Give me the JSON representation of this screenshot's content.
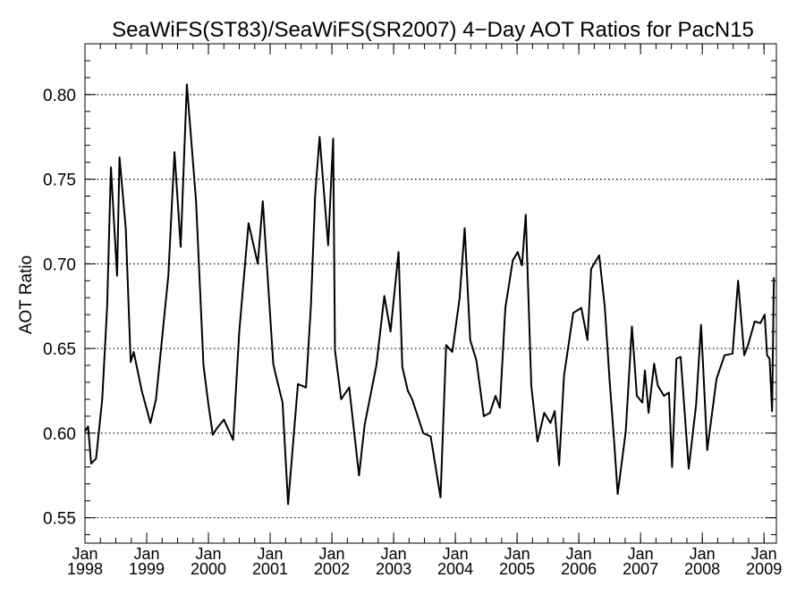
{
  "chart_data": {
    "type": "line",
    "title": "SeaWiFS(ST83)/SeaWiFS(SR2007) 4−Day AOT Ratios for PacN15",
    "ylabel": "AOT Ratio",
    "xlabel": "",
    "ylim": [
      0.535,
      0.83
    ],
    "xlim": [
      1998.0,
      2009.2
    ],
    "grid": "horizontal-dotted",
    "y_ticks": [
      {
        "value": 0.55,
        "label": "0.55"
      },
      {
        "value": 0.6,
        "label": "0.60"
      },
      {
        "value": 0.65,
        "label": "0.65"
      },
      {
        "value": 0.7,
        "label": "0.70"
      },
      {
        "value": 0.75,
        "label": "0.75"
      },
      {
        "value": 0.8,
        "label": "0.80"
      }
    ],
    "x_ticks": [
      {
        "value": 1998,
        "month": "Jan",
        "year": "1998"
      },
      {
        "value": 1999,
        "month": "Jan",
        "year": "1999"
      },
      {
        "value": 2000,
        "month": "Jan",
        "year": "2000"
      },
      {
        "value": 2001,
        "month": "Jan",
        "year": "2001"
      },
      {
        "value": 2002,
        "month": "Jan",
        "year": "2002"
      },
      {
        "value": 2003,
        "month": "Jan",
        "year": "2003"
      },
      {
        "value": 2004,
        "month": "Jan",
        "year": "2004"
      },
      {
        "value": 2005,
        "month": "Jan",
        "year": "2005"
      },
      {
        "value": 2006,
        "month": "Jan",
        "year": "2006"
      },
      {
        "value": 2007,
        "month": "Jan",
        "year": "2007"
      },
      {
        "value": 2008,
        "month": "Jan",
        "year": "2008"
      },
      {
        "value": 2009,
        "month": "Jan",
        "year": "2009"
      }
    ],
    "series": [
      {
        "color": "#000000",
        "x": [
          1998.0,
          1998.05,
          1998.1,
          1998.18,
          1998.28,
          1998.36,
          1998.42,
          1998.52,
          1998.56,
          1998.66,
          1998.74,
          1998.79,
          1998.92,
          1999.06,
          1999.15,
          1999.35,
          1999.45,
          1999.55,
          1999.65,
          1999.8,
          1999.92,
          2000.0,
          2000.07,
          2000.14,
          2000.25,
          2000.4,
          2000.5,
          2000.65,
          2000.8,
          2000.88,
          2001.05,
          2001.08,
          2001.2,
          2001.29,
          2001.45,
          2001.58,
          2001.66,
          2001.73,
          2001.8,
          2001.94,
          2002.02,
          2002.05,
          2002.15,
          2002.28,
          2002.44,
          2002.53,
          2002.72,
          2002.85,
          2002.95,
          2003.08,
          2003.14,
          2003.23,
          2003.3,
          2003.48,
          2003.6,
          2003.76,
          2003.85,
          2003.95,
          2004.07,
          2004.15,
          2004.24,
          2004.34,
          2004.46,
          2004.56,
          2004.65,
          2004.72,
          2004.81,
          2004.93,
          2005.01,
          2005.08,
          2005.14,
          2005.23,
          2005.33,
          2005.44,
          2005.54,
          2005.61,
          2005.68,
          2005.76,
          2005.91,
          2006.04,
          2006.14,
          2006.2,
          2006.33,
          2006.42,
          2006.5,
          2006.57,
          2006.63,
          2006.76,
          2006.86,
          2006.94,
          2007.03,
          2007.07,
          2007.13,
          2007.22,
          2007.28,
          2007.38,
          2007.46,
          2007.51,
          2007.58,
          2007.65,
          2007.78,
          2007.9,
          2007.98,
          2008.08,
          2008.23,
          2008.36,
          2008.49,
          2008.58,
          2008.68,
          2008.74,
          2008.85,
          2008.94,
          2009.01,
          2009.05,
          2009.09,
          2009.13,
          2009.16
        ],
        "y": [
          0.601,
          0.604,
          0.582,
          0.585,
          0.62,
          0.675,
          0.757,
          0.693,
          0.763,
          0.721,
          0.642,
          0.648,
          0.625,
          0.606,
          0.62,
          0.693,
          0.766,
          0.71,
          0.806,
          0.737,
          0.64,
          0.617,
          0.599,
          0.603,
          0.608,
          0.596,
          0.66,
          0.724,
          0.7,
          0.737,
          0.641,
          0.636,
          0.618,
          0.558,
          0.629,
          0.627,
          0.675,
          0.741,
          0.775,
          0.711,
          0.774,
          0.649,
          0.62,
          0.627,
          0.575,
          0.605,
          0.64,
          0.681,
          0.66,
          0.707,
          0.639,
          0.625,
          0.62,
          0.6,
          0.598,
          0.562,
          0.652,
          0.648,
          0.68,
          0.721,
          0.655,
          0.643,
          0.61,
          0.612,
          0.622,
          0.615,
          0.674,
          0.702,
          0.707,
          0.699,
          0.729,
          0.628,
          0.595,
          0.612,
          0.606,
          0.613,
          0.581,
          0.634,
          0.671,
          0.674,
          0.655,
          0.697,
          0.705,
          0.675,
          0.63,
          0.596,
          0.564,
          0.601,
          0.663,
          0.622,
          0.618,
          0.637,
          0.612,
          0.641,
          0.628,
          0.622,
          0.624,
          0.58,
          0.644,
          0.645,
          0.579,
          0.617,
          0.664,
          0.59,
          0.632,
          0.646,
          0.647,
          0.69,
          0.646,
          0.652,
          0.666,
          0.665,
          0.67,
          0.646,
          0.644,
          0.613,
          0.692
        ]
      }
    ]
  }
}
